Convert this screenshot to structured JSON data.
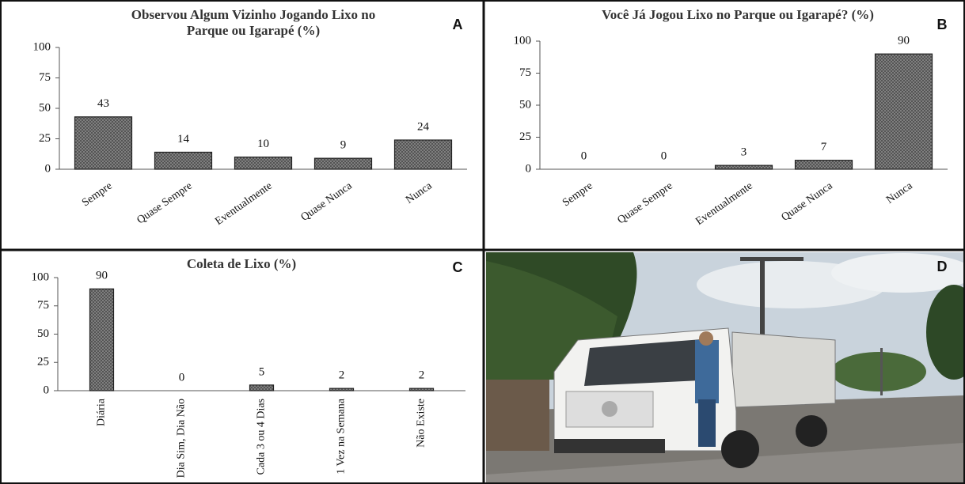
{
  "chart_data": [
    {
      "type": "bar",
      "panel": "A",
      "title": [
        "Observou Algum Vizinho Jogando Lixo no",
        "Parque ou Igarapé (%)"
      ],
      "categories": [
        "Sempre",
        "Quase Sempre",
        "Eventualmente",
        "Quase Nunca",
        "Nunca"
      ],
      "values": [
        43,
        14,
        10,
        9,
        24
      ],
      "color": "#7a7a7a",
      "ylim": [
        0,
        100
      ],
      "yticks": [
        0,
        25,
        50,
        75,
        100
      ],
      "grid": false
    },
    {
      "type": "bar",
      "panel": "B",
      "title": [
        "Você Já Jogou Lixo no Parque ou Igarapé? (%)"
      ],
      "categories": [
        "Sempre",
        "Quase Sempre",
        "Eventualmente",
        "Quase Nunca",
        "Nunca"
      ],
      "values": [
        0,
        0,
        3,
        7,
        90
      ],
      "color": "#7a7a7a",
      "ylim": [
        0,
        100
      ],
      "yticks": [
        0,
        25,
        50,
        75,
        100
      ],
      "grid": false
    },
    {
      "type": "bar",
      "panel": "C",
      "title": [
        "Coleta de Lixo (%)"
      ],
      "categories": [
        "Diária",
        "Dia Sim, Dia Não",
        "Cada 3 ou 4 Dias",
        "1 Vez na Semana",
        "Não Existe"
      ],
      "values": [
        90,
        0,
        5,
        2,
        2
      ],
      "color": "#7a7a7a",
      "ylim": [
        0,
        100
      ],
      "yticks": [
        0,
        25,
        50,
        75,
        100
      ],
      "grid": false
    }
  ],
  "photo": {
    "panel": "D"
  }
}
